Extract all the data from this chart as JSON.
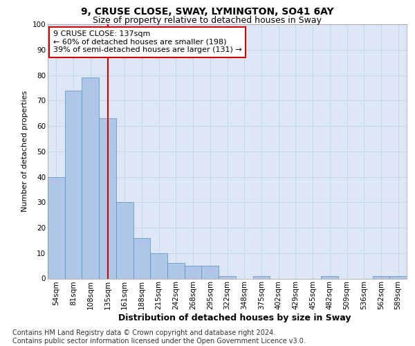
{
  "title1": "9, CRUSE CLOSE, SWAY, LYMINGTON, SO41 6AY",
  "title2": "Size of property relative to detached houses in Sway",
  "xlabel": "Distribution of detached houses by size in Sway",
  "ylabel": "Number of detached properties",
  "categories": [
    "54sqm",
    "81sqm",
    "108sqm",
    "135sqm",
    "161sqm",
    "188sqm",
    "215sqm",
    "242sqm",
    "268sqm",
    "295sqm",
    "322sqm",
    "348sqm",
    "375sqm",
    "402sqm",
    "429sqm",
    "455sqm",
    "482sqm",
    "509sqm",
    "536sqm",
    "562sqm",
    "589sqm"
  ],
  "values": [
    40,
    74,
    79,
    63,
    30,
    16,
    10,
    6,
    5,
    5,
    1,
    0,
    1,
    0,
    0,
    0,
    1,
    0,
    0,
    1,
    1
  ],
  "bar_color": "#aec6e8",
  "bar_edge_color": "#5b8db8",
  "highlight_bar_index": 3,
  "highlight_color": "#cc0000",
  "ylim": [
    0,
    100
  ],
  "yticks": [
    0,
    10,
    20,
    30,
    40,
    50,
    60,
    70,
    80,
    90,
    100
  ],
  "annotation_box_text": [
    "9 CRUSE CLOSE: 137sqm",
    "← 60% of detached houses are smaller (198)",
    "39% of semi-detached houses are larger (131) →"
  ],
  "annotation_box_color": "#cc0000",
  "annotation_box_fill": "#ffffff",
  "grid_color": "#c8d4e8",
  "plot_bg_color": "#dce6f5",
  "footer_text": "Contains HM Land Registry data © Crown copyright and database right 2024.\nContains public sector information licensed under the Open Government Licence v3.0.",
  "title1_fontsize": 10,
  "title2_fontsize": 9,
  "xlabel_fontsize": 9,
  "ylabel_fontsize": 8,
  "tick_fontsize": 7.5,
  "annotation_fontsize": 8,
  "footer_fontsize": 7
}
